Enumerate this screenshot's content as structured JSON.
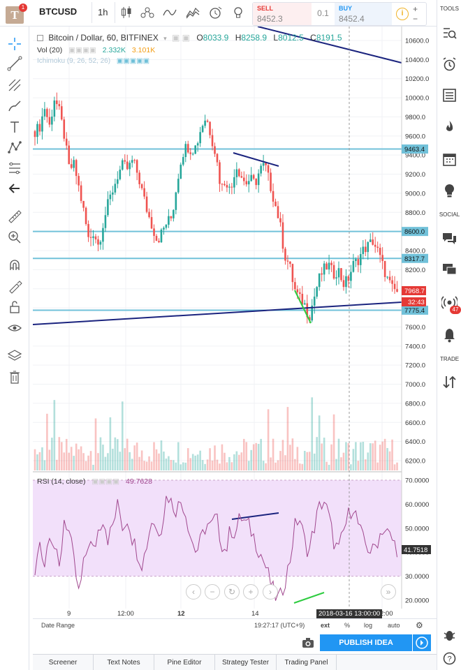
{
  "header": {
    "logo": "T",
    "notification_count": "1",
    "symbol": "BTCUSD",
    "timeframe": "1h",
    "sell_label": "SELL",
    "sell_price": "8452.3",
    "quantity": "0.1",
    "buy_label": "BUY",
    "buy_price": "8452.4"
  },
  "legend": {
    "title": "Bitcoin / Dollar, 60, BITFINEX",
    "open_label": "O",
    "open": "8033.9",
    "high_label": "H",
    "high": "8258.9",
    "low_label": "L",
    "low": "8012.5",
    "close_label": "C",
    "close": "8191.5",
    "vol_label": "Vol (20)",
    "vol_value1": "2.332K",
    "vol_value2": "3.101K",
    "ichimoku_label": "Ichimoku (9, 26, 52, 26)"
  },
  "rsi_legend": {
    "label": "RSI (14, close)",
    "value": "49.7628"
  },
  "price_axis": {
    "ticks": [
      "10600.0",
      "10400.0",
      "10200.0",
      "10000.0",
      "9800.0",
      "9600.0",
      "9400.0",
      "9200.0",
      "9000.0",
      "8800.0",
      "8600.0",
      "8400.0",
      "8200.0",
      "8000.0",
      "7800.0",
      "7600.0",
      "7400.0",
      "7200.0",
      "7000.0",
      "6800.0",
      "6600.0",
      "6400.0",
      "6200.0"
    ],
    "horizontal_line_labels": [
      "9463.4",
      "8600.0",
      "8317.7",
      "7775.4"
    ],
    "last_price": "7968.7",
    "countdown": "32:43"
  },
  "rsi_axis": {
    "ticks": [
      "70.0000",
      "60.0000",
      "50.0000",
      "40.0000",
      "30.0000",
      "20.0000"
    ],
    "cursor_value": "41.7518"
  },
  "time_axis": {
    "ticks": [
      "9",
      "12:00",
      "12",
      "14",
      "2:00"
    ],
    "cursor_label": "2018-03-16 13:00:00"
  },
  "bottom_bar": {
    "date_range": "Date Range",
    "clock": "19:27:17 (UTC+9)",
    "ext": "ext",
    "percent": "%",
    "log": "log",
    "auto": "auto"
  },
  "publish_label": "PUBLISH IDEA",
  "right_sidebar": {
    "tools_header": "TOOLS",
    "social_header": "SOCIAL",
    "trade_header": "TRADE",
    "stream_count": "47"
  },
  "bottom_tabs": [
    "Screener",
    "Text Notes",
    "Pine Editor",
    "Strategy Tester",
    "Trading Panel"
  ],
  "icons": {
    "top": [
      "candles-icon",
      "compare-icon",
      "line-style-icon",
      "indicators-icon",
      "alert-icon",
      "bulb-icon"
    ],
    "left": [
      "crosshair-icon",
      "trendline-icon",
      "pitchfork-icon",
      "brush-icon",
      "text-icon",
      "pattern-icon",
      "fib-icon",
      "back-arrow-icon",
      "ruler-icon",
      "zoom-icon",
      "magnet-icon",
      "lock-drawing-icon",
      "unlock-icon",
      "eye-icon",
      "layers-icon",
      "trash-icon"
    ],
    "right": [
      "watchlist-icon",
      "alarm-icon",
      "data-window-icon",
      "hotlist-icon",
      "calendar-icon",
      "ideas-icon",
      "chats-icon",
      "streams-icon",
      "notifications-icon",
      "dom-icon"
    ]
  },
  "colors": {
    "bull": "#26a69a",
    "bear": "#ef5350",
    "hline": "#71c1d9",
    "trend": "#1a237e",
    "green_line": "#2ecc40",
    "rsi_fill": "#f2e0fa",
    "rsi_line": "#a0478e",
    "last_price_bg": "#e53935",
    "accent": "#2196f3"
  },
  "chart_data": {
    "type": "candlestick",
    "symbol": "BTCUSD",
    "interval": "60",
    "exchange": "BITFINEX",
    "ylim": [
      6100,
      10700
    ],
    "horizontal_levels": [
      9463.4,
      8600.0,
      8317.7,
      7775.4
    ],
    "last_price": 7968.7,
    "price_path": [
      9650,
      9700,
      9900,
      9700,
      10000,
      9850,
      9600,
      9250,
      9300,
      9050,
      8800,
      8500,
      8600,
      8450,
      8700,
      8900,
      9050,
      9200,
      9300,
      9250,
      9350,
      9200,
      9000,
      8800,
      8650,
      8500,
      8600,
      8700,
      8750,
      9100,
      9400,
      9500,
      9450,
      9500,
      9700,
      9800,
      9600,
      9400,
      9050,
      9150,
      9000,
      9300,
      9200,
      9100,
      9150,
      9100,
      9250,
      9300,
      9100,
      8900,
      8700,
      8350,
      8250,
      8000,
      7900,
      7850,
      7700,
      7900,
      8100,
      8200,
      8250,
      8150,
      8200,
      8050,
      8100,
      8250,
      8300,
      8400,
      8450,
      8500,
      8400,
      8250,
      8100,
      8000,
      7968.7
    ],
    "rsi": {
      "ylim": [
        18,
        72
      ],
      "overbought": 70,
      "oversold": 30,
      "last": 49.7628,
      "values": [
        30,
        45,
        35,
        50,
        42,
        32,
        55,
        48,
        35,
        22,
        35,
        45,
        40,
        50,
        55,
        45,
        52,
        60,
        50,
        55,
        45,
        40,
        35,
        45,
        55,
        48,
        52,
        65,
        60,
        58,
        62,
        55,
        45,
        40,
        45,
        52,
        50,
        55,
        45,
        40,
        50,
        48,
        55,
        52,
        50,
        45,
        40,
        35,
        28,
        22,
        20,
        28,
        35,
        50,
        55,
        45,
        40,
        50,
        58,
        62,
        55,
        45,
        40,
        48,
        55,
        60,
        52,
        45,
        42,
        40,
        45,
        50,
        48,
        45,
        41.75
      ]
    }
  }
}
